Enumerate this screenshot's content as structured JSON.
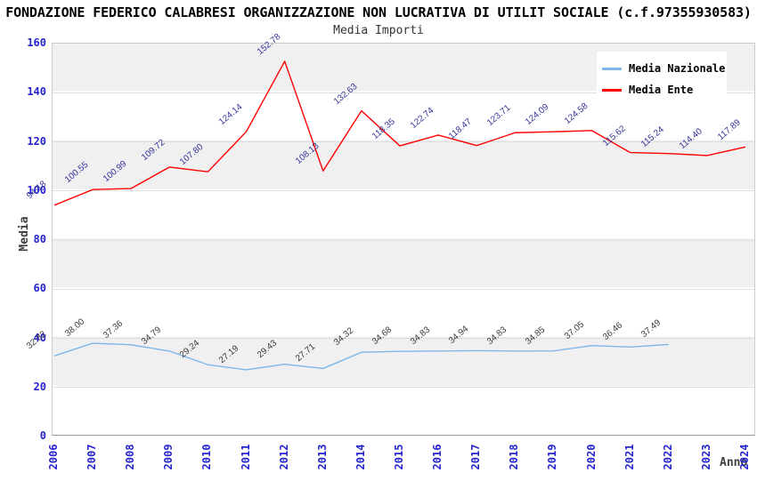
{
  "header": {
    "title": "FONDAZIONE FEDERICO CALABRESI ORGANIZZAZIONE NON LUCRATIVA DI UTILIT SOCIALE (c.f.97355930583)",
    "subtitle": "Media Importi"
  },
  "axes": {
    "y_title": "Media",
    "x_title": "Anno",
    "y_ticks": [
      0,
      20,
      40,
      60,
      80,
      100,
      120,
      140,
      160
    ],
    "tick_color": "#2424ce"
  },
  "legend": {
    "items": [
      {
        "label": "Media Nazionale"
      },
      {
        "label": "Media Ente"
      }
    ]
  },
  "chart_data": {
    "type": "line",
    "title": "Media Importi",
    "xlabel": "Anno",
    "ylabel": "Media",
    "ylim": [
      0,
      160
    ],
    "grid": "horizontal-bands",
    "legend_position": "top-right",
    "categories": [
      "2006",
      "2007",
      "2008",
      "2009",
      "2010",
      "2011",
      "2012",
      "2013",
      "2014",
      "2015",
      "2016",
      "2017",
      "2018",
      "2019",
      "2020",
      "2021",
      "2022",
      "2023",
      "2024"
    ],
    "series": [
      {
        "name": "Media Nazionale",
        "color": "#7EB6E8",
        "label_color": "#3a3a3a",
        "values": [
          32.82,
          38.0,
          37.36,
          34.79,
          29.24,
          27.19,
          29.43,
          27.71,
          34.32,
          34.68,
          34.83,
          34.94,
          34.83,
          34.85,
          37.05,
          36.46,
          37.49,
          null,
          null
        ]
      },
      {
        "name": "Media Ente",
        "color": "#FF0000",
        "label_color": "#333399",
        "values": [
          94.18,
          100.55,
          100.99,
          109.72,
          107.8,
          124.14,
          152.78,
          108.13,
          132.63,
          118.35,
          122.74,
          118.47,
          123.71,
          124.09,
          124.58,
          115.62,
          115.24,
          114.4,
          117.89
        ]
      }
    ]
  }
}
